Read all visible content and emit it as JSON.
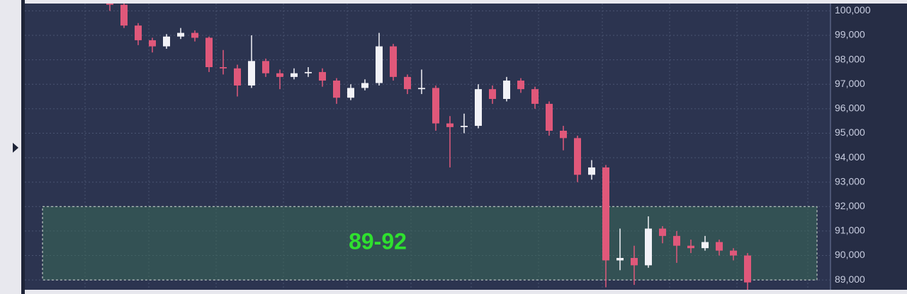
{
  "chart_data": {
    "type": "candlestick",
    "open": [
      100500,
      100250,
      99400,
      98800,
      98550,
      98950,
      99100,
      98900,
      97700,
      97650,
      96950,
      97950,
      97450,
      97300,
      97450,
      97500,
      97150,
      96450,
      96850,
      97050,
      98550,
      97300,
      96800,
      96850,
      95400,
      95250,
      95300,
      96800,
      96400,
      97150,
      96800,
      96200,
      95100,
      94800,
      93300,
      93600,
      89800,
      89900,
      89600,
      91100,
      90800,
      90400,
      90300,
      90550,
      90200,
      90000
    ],
    "high": [
      100600,
      100300,
      99500,
      98900,
      99050,
      99300,
      99200,
      98950,
      98400,
      97800,
      99000,
      98050,
      97600,
      97650,
      97700,
      97650,
      97250,
      97000,
      97200,
      99100,
      98650,
      97400,
      97600,
      96950,
      95700,
      95800,
      97000,
      96950,
      97300,
      97250,
      96900,
      96300,
      95300,
      94900,
      93900,
      93700,
      91100,
      90400,
      91600,
      91200,
      91000,
      90650,
      90800,
      90650,
      90300,
      90100
    ],
    "low": [
      100000,
      99300,
      98600,
      98300,
      98450,
      98850,
      98750,
      97500,
      97400,
      96500,
      96850,
      97300,
      96800,
      97200,
      97300,
      96900,
      96200,
      96350,
      96750,
      96950,
      97150,
      96600,
      96600,
      95100,
      93600,
      95000,
      95200,
      96200,
      96300,
      96650,
      96000,
      94900,
      94300,
      93000,
      93100,
      88700,
      89400,
      88800,
      89500,
      90500,
      89700,
      90100,
      90200,
      90000,
      89800,
      88600
    ],
    "close": [
      100250,
      99400,
      98800,
      98550,
      98950,
      99100,
      98900,
      97700,
      97650,
      96950,
      97950,
      97450,
      97300,
      97450,
      97500,
      97150,
      96450,
      96850,
      97050,
      98550,
      97300,
      96800,
      96850,
      95400,
      95250,
      95300,
      96800,
      96400,
      97150,
      96800,
      96200,
      95100,
      94800,
      93300,
      93600,
      89800,
      89900,
      89600,
      91100,
      90800,
      90400,
      90300,
      90550,
      90200,
      90000,
      88900
    ],
    "up_color": "#f2f2f7",
    "down_color": "#e0587a",
    "ylim": [
      88600,
      100300
    ],
    "yticks": [
      {
        "value": 100000,
        "label": "100,000"
      },
      {
        "value": 99000,
        "label": "99,000"
      },
      {
        "value": 98000,
        "label": "98,000"
      },
      {
        "value": 97000,
        "label": "97,000"
      },
      {
        "value": 96000,
        "label": "96,000"
      },
      {
        "value": 95000,
        "label": "95,000"
      },
      {
        "value": 94000,
        "label": "94,000"
      },
      {
        "value": 93000,
        "label": "93,000"
      },
      {
        "value": 92000,
        "label": "92,000"
      },
      {
        "value": 91000,
        "label": "91,000"
      },
      {
        "value": 90000,
        "label": "90,000"
      },
      {
        "value": 89000,
        "label": "89,000"
      }
    ],
    "grid": true,
    "zone": {
      "from": 89000,
      "to": 92000,
      "label": "89-92",
      "color": "#2fe02f"
    }
  }
}
